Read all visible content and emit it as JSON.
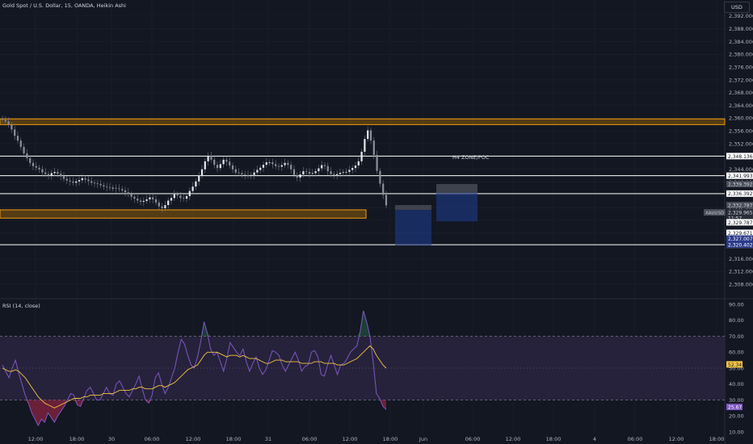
{
  "header": {
    "title": "Gold Spot / U.S. Dollar, 15, OANDA, Heikin Ashi",
    "currency_label": "USD"
  },
  "rsi_panel": {
    "title": "RSI (14, close)"
  },
  "colors": {
    "background": "#131722",
    "candle_body": "#d1d4dc",
    "candle_wick": "#787b86",
    "zone_fill": "#6b4a12",
    "zone_border": "#f59e0b",
    "level_line": "#ffffff",
    "box_blue": "#1e3a8a",
    "box_gray": "#4a4e59",
    "rsi_line": "#7e57c2",
    "rsi_ma": "#f5c542",
    "rsi_band": "#2a2440",
    "grid": "#1e222d",
    "axis_text": "#b2b5be"
  },
  "chart_data": [
    {
      "type": "candlestick",
      "title": "Gold Spot / U.S. Dollar, 15, OANDA, Heikin Ashi",
      "y_ticks": [
        "2,392.000",
        "2,388.000",
        "2,384.000",
        "2,380.000",
        "2,376.000",
        "2,372.000",
        "2,368.000",
        "2,364.000",
        "2,360.000",
        "2,356.000",
        "2,352.000",
        "2,348.000",
        "2,344.000",
        "2,340.000",
        "2,336.000",
        "2,332.000",
        "2,328.000",
        "2,324.000",
        "2,320.000",
        "2,316.000",
        "2,312.000",
        "2,308.000"
      ],
      "ylim": [
        2305.5,
        2395.0
      ],
      "x_ticks": [
        "12:00",
        "18:00",
        "30",
        "06:00",
        "12:00",
        "18:00",
        "31",
        "06:00",
        "12:00",
        "18:00",
        "Jun",
        "06:00",
        "12:00",
        "18:00",
        "4",
        "06:00",
        "12:00",
        "18:00"
      ],
      "close_series": [
        2359.5,
        2359,
        2358,
        2356.5,
        2354.5,
        2353,
        2351,
        2349,
        2347.5,
        2346,
        2345,
        2344.5,
        2344,
        2343,
        2342.5,
        2342,
        2342.8,
        2343.2,
        2342.6,
        2341.8,
        2341,
        2340.5,
        2340.2,
        2339.8,
        2340.2,
        2340.6,
        2341.2,
        2340.8,
        2340.3,
        2339.8,
        2339.6,
        2339.4,
        2339,
        2338.6,
        2338.4,
        2338.2,
        2338.2,
        2338,
        2337.8,
        2337.4,
        2336.8,
        2336.2,
        2335.4,
        2334.8,
        2334.2,
        2333.8,
        2334.1,
        2334.6,
        2335.2,
        2334.6,
        2333.6,
        2332.4,
        2331.8,
        2332.8,
        2334.2,
        2335,
        2336.2,
        2335.8,
        2335,
        2334.8,
        2335.6,
        2337.2,
        2338.6,
        2340.2,
        2342,
        2344,
        2346.5,
        2348.2,
        2347,
        2345.4,
        2344.4,
        2345.6,
        2347,
        2346.4,
        2345.2,
        2344,
        2343,
        2342.8,
        2342.4,
        2342.2,
        2342,
        2342.2,
        2343,
        2343.8,
        2344.5,
        2345.4,
        2346.2,
        2346.2,
        2345.6,
        2345,
        2344.8,
        2345.3,
        2346,
        2345.4,
        2344,
        2342.2,
        2341.4,
        2342.4,
        2343.4,
        2343.2,
        2342.6,
        2342.8,
        2343.4,
        2344.3,
        2345.3,
        2345,
        2343.4,
        2342.5,
        2342.2,
        2342.5,
        2342.9,
        2343.1,
        2343.2,
        2343.8,
        2344.4,
        2345.2,
        2346.5,
        2349.5,
        2353.5,
        2356.2,
        2353,
        2348.5,
        2343.5,
        2339.5,
        2336,
        2332.7
      ],
      "levels": [
        {
          "label": "2,348.136",
          "price": 2348.136
        },
        {
          "label": "2,341.993",
          "price": 2341.993
        },
        {
          "label": "2,336.392",
          "price": 2336.392
        },
        {
          "label": "2,320.383",
          "price": 2320.383
        }
      ],
      "zones": [
        {
          "top": 2359.8,
          "bottom": 2358.0,
          "x_end": "right"
        },
        {
          "top": 2331.3,
          "bottom": 2328.7,
          "x_end": "18:00"
        }
      ],
      "annotation": "H4 ZONE/POC",
      "price_labels": [
        {
          "label": "2,339.392",
          "price": 2339.392,
          "style": "gray"
        },
        {
          "label": "2,332.787",
          "price": 2332.787,
          "style": "gray"
        },
        {
          "label": "XAUUSD",
          "price": 2330.5,
          "style": "symbol"
        },
        {
          "label": "2,329.965",
          "price": 2330.5,
          "style": "dark"
        },
        {
          "label": "11:57",
          "price": 2328.7,
          "style": "dark"
        },
        {
          "label": "2,329.787",
          "price": 2327.4,
          "style": "white"
        },
        {
          "label": "2,329.671",
          "price": 2324.1,
          "style": "white"
        },
        {
          "label": "2,327.007",
          "price": 2322.3,
          "style": "blue"
        },
        {
          "label": "2,320.402",
          "price": 2320.4,
          "style": "blue"
        }
      ]
    },
    {
      "type": "line",
      "title": "RSI (14, close)",
      "ylim": [
        10,
        90
      ],
      "y_ticks": [
        "90.00",
        "80.00",
        "70.00",
        "60.00",
        "50.00",
        "40.00",
        "30.00",
        "20.00",
        "10.00"
      ],
      "band": [
        30,
        70
      ],
      "series": [
        {
          "values": [
            52,
            48,
            44,
            50,
            55,
            47,
            40,
            33,
            28,
            22,
            18,
            14,
            18,
            16,
            22,
            19,
            16,
            20,
            23,
            26,
            30,
            34,
            33,
            27,
            26,
            31,
            36,
            38,
            34,
            30,
            30,
            34,
            38,
            34,
            33,
            40,
            42,
            38,
            34,
            32,
            36,
            40,
            45,
            37,
            30,
            28,
            33,
            44,
            47,
            40,
            34,
            38,
            44,
            50,
            60,
            68,
            65,
            58,
            52,
            50,
            57,
            67,
            79,
            72,
            62,
            58,
            60,
            54,
            48,
            56,
            66,
            63,
            60,
            58,
            62,
            54,
            48,
            53,
            57,
            50,
            46,
            49,
            55,
            61,
            60,
            58,
            52,
            48,
            52,
            56,
            60,
            55,
            48,
            51,
            52,
            60,
            61,
            57,
            46,
            45,
            52,
            58,
            52,
            46,
            52,
            53,
            56,
            60,
            62,
            64,
            73,
            86,
            79,
            70,
            54,
            34,
            31,
            26,
            24
          ]
        },
        {
          "values": [
            50,
            49,
            48,
            48,
            49,
            48,
            46,
            44,
            41,
            38,
            35,
            32,
            30,
            28,
            27,
            26,
            25,
            26,
            27,
            28,
            29,
            30,
            31,
            31,
            31,
            32,
            32,
            33,
            33,
            33,
            33,
            34,
            34,
            34,
            34,
            35,
            36,
            36,
            36,
            36,
            37,
            37,
            38,
            38,
            37,
            37,
            37,
            38,
            39,
            39,
            38,
            39,
            40,
            41,
            43,
            45,
            47,
            49,
            50,
            51,
            52,
            55,
            58,
            60,
            60,
            60,
            60,
            59,
            58,
            57,
            58,
            58,
            58,
            57,
            58,
            57,
            56,
            56,
            56,
            55,
            54,
            53,
            53,
            54,
            55,
            55,
            55,
            54,
            54,
            54,
            54,
            54,
            53,
            53,
            53,
            53,
            54,
            54,
            54,
            53,
            53,
            53,
            53,
            52,
            52,
            52,
            53,
            54,
            55,
            56,
            58,
            60,
            62,
            64,
            62,
            58,
            55,
            52,
            50
          ]
        }
      ]
    }
  ]
}
